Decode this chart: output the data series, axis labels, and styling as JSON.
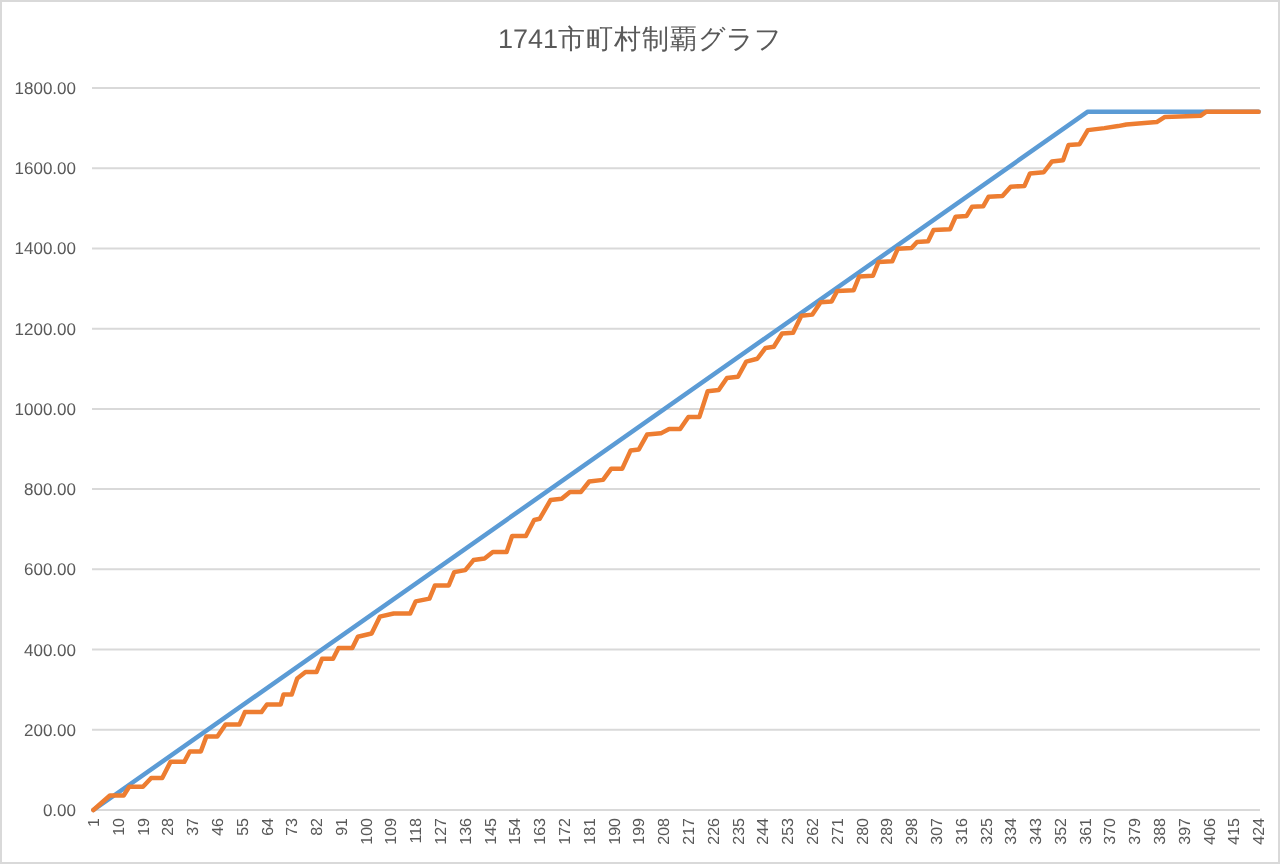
{
  "chart_data": {
    "type": "line",
    "title": "1741市町村制覇グラフ",
    "xlim": [
      0.5,
      424.5
    ],
    "xticks": [
      1,
      10,
      19,
      28,
      37,
      46,
      55,
      64,
      73,
      82,
      91,
      100,
      109,
      118,
      127,
      136,
      145,
      154,
      163,
      172,
      181,
      190,
      199,
      208,
      217,
      226,
      235,
      244,
      253,
      262,
      271,
      280,
      289,
      298,
      307,
      316,
      325,
      334,
      343,
      352,
      361,
      370,
      379,
      388,
      397,
      406,
      415,
      424
    ],
    "ylim": [
      0,
      1800
    ],
    "yticks": [
      {
        "value": 0,
        "label": "0.00"
      },
      {
        "value": 200,
        "label": "200.00"
      },
      {
        "value": 400,
        "label": "400.00"
      },
      {
        "value": 600,
        "label": "600.00"
      },
      {
        "value": 800,
        "label": "800.00"
      },
      {
        "value": 1000,
        "label": "1000.00"
      },
      {
        "value": 1200,
        "label": "1200.00"
      },
      {
        "value": 1400,
        "label": "1400.00"
      },
      {
        "value": 1600,
        "label": "1600.00"
      },
      {
        "value": 1800,
        "label": "1800.00"
      }
    ],
    "grid": "y",
    "series": [
      {
        "color": "#5b9bd5",
        "x": [
          1,
          362,
          424
        ],
        "values": [
          0,
          1741,
          1741
        ]
      },
      {
        "color": "#ed7d31",
        "x": [
          1,
          7,
          12,
          14,
          19,
          22,
          26,
          29,
          34,
          36,
          40,
          42,
          46,
          49,
          54,
          56,
          62,
          64,
          69,
          70,
          73,
          75,
          78,
          82,
          84,
          88,
          90,
          95,
          97,
          102,
          105,
          110,
          116,
          118,
          123,
          125,
          130,
          132,
          136,
          139,
          143,
          146,
          151,
          153,
          158,
          161,
          163,
          167,
          171,
          174,
          178,
          181,
          186,
          189,
          193,
          196,
          199,
          202,
          207,
          210,
          214,
          217,
          221,
          224,
          228,
          231,
          235,
          238,
          242,
          245,
          248,
          251,
          255,
          258,
          262,
          265,
          269,
          271,
          277,
          279,
          284,
          286,
          291,
          293,
          298,
          300,
          304,
          306,
          312,
          314,
          318,
          320,
          324,
          326,
          331,
          334,
          339,
          341,
          346,
          349,
          353,
          355,
          359,
          362,
          368,
          373,
          376,
          387,
          390,
          403,
          405,
          424
        ],
        "values": [
          0,
          36,
          36,
          58,
          58,
          80,
          80,
          120,
          120,
          146,
          146,
          183,
          183,
          213,
          213,
          244,
          244,
          263,
          263,
          288,
          288,
          328,
          344,
          344,
          377,
          377,
          404,
          404,
          432,
          440,
          482,
          490,
          490,
          520,
          527,
          560,
          560,
          593,
          598,
          623,
          627,
          643,
          643,
          683,
          683,
          723,
          726,
          773,
          776,
          793,
          793,
          819,
          823,
          851,
          851,
          896,
          899,
          936,
          939,
          950,
          950,
          980,
          980,
          1044,
          1047,
          1077,
          1080,
          1118,
          1125,
          1152,
          1155,
          1188,
          1190,
          1232,
          1235,
          1266,
          1268,
          1294,
          1296,
          1330,
          1332,
          1366,
          1368,
          1399,
          1401,
          1416,
          1418,
          1446,
          1448,
          1479,
          1481,
          1504,
          1505,
          1529,
          1531,
          1554,
          1556,
          1587,
          1590,
          1617,
          1620,
          1658,
          1660,
          1695,
          1700,
          1705,
          1709,
          1715,
          1728,
          1731,
          1741,
          1741
        ]
      }
    ]
  }
}
